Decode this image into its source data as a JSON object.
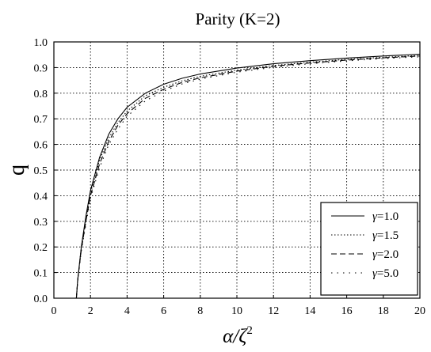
{
  "chart_data": {
    "type": "line",
    "title": "Parity (K=2)",
    "xlabel": "α/ζ",
    "xlabel_superscript": "2",
    "ylabel": "q",
    "xlim": [
      0,
      20
    ],
    "ylim": [
      0,
      1
    ],
    "xticks": [
      0,
      2,
      4,
      6,
      8,
      10,
      12,
      14,
      16,
      18,
      20
    ],
    "yticks": [
      "0.0",
      "0.1",
      "0.2",
      "0.3",
      "0.4",
      "0.5",
      "0.6",
      "0.7",
      "0.8",
      "0.9",
      "1.0"
    ],
    "grid": true,
    "legend_position": "bottom-right",
    "series": [
      {
        "name": "γ=1.0",
        "legend_symbol": "γ",
        "legend_value": "=1.0",
        "dash": "solid",
        "points": [
          [
            1.23,
            0
          ],
          [
            1.3,
            0.07
          ],
          [
            1.5,
            0.2
          ],
          [
            1.75,
            0.32
          ],
          [
            2.0,
            0.42
          ],
          [
            2.5,
            0.55
          ],
          [
            3.0,
            0.64
          ],
          [
            3.5,
            0.7
          ],
          [
            4.0,
            0.745
          ],
          [
            5.0,
            0.8
          ],
          [
            6.0,
            0.835
          ],
          [
            7.0,
            0.858
          ],
          [
            8.0,
            0.875
          ],
          [
            10.0,
            0.898
          ],
          [
            12.0,
            0.915
          ],
          [
            14.0,
            0.927
          ],
          [
            16.0,
            0.937
          ],
          [
            18.0,
            0.945
          ],
          [
            20.0,
            0.952
          ]
        ]
      },
      {
        "name": "γ=1.5",
        "legend_symbol": "γ",
        "legend_value": "=1.5",
        "dash": "dotted",
        "points": [
          [
            1.23,
            0
          ],
          [
            1.3,
            0.07
          ],
          [
            1.5,
            0.2
          ],
          [
            1.75,
            0.31
          ],
          [
            2.0,
            0.41
          ],
          [
            2.5,
            0.54
          ],
          [
            3.0,
            0.625
          ],
          [
            3.5,
            0.685
          ],
          [
            4.0,
            0.73
          ],
          [
            5.0,
            0.79
          ],
          [
            6.0,
            0.823
          ],
          [
            7.0,
            0.848
          ],
          [
            8.0,
            0.866
          ],
          [
            10.0,
            0.89
          ],
          [
            12.0,
            0.908
          ],
          [
            14.0,
            0.921
          ],
          [
            16.0,
            0.932
          ],
          [
            18.0,
            0.94
          ],
          [
            20.0,
            0.947
          ]
        ]
      },
      {
        "name": "γ=2.0",
        "legend_symbol": "γ",
        "legend_value": "=2.0",
        "dash": "dashed",
        "points": [
          [
            1.23,
            0
          ],
          [
            1.3,
            0.07
          ],
          [
            1.5,
            0.19
          ],
          [
            1.75,
            0.3
          ],
          [
            2.0,
            0.4
          ],
          [
            2.5,
            0.525
          ],
          [
            3.0,
            0.612
          ],
          [
            3.5,
            0.675
          ],
          [
            4.0,
            0.72
          ],
          [
            5.0,
            0.78
          ],
          [
            6.0,
            0.815
          ],
          [
            7.0,
            0.842
          ],
          [
            8.0,
            0.86
          ],
          [
            10.0,
            0.886
          ],
          [
            12.0,
            0.905
          ],
          [
            14.0,
            0.918
          ],
          [
            16.0,
            0.929
          ],
          [
            18.0,
            0.938
          ],
          [
            20.0,
            0.945
          ]
        ]
      },
      {
        "name": "γ=5.0",
        "legend_symbol": "γ",
        "legend_value": "=5.0",
        "dash": "sparse-dotted",
        "points": [
          [
            1.23,
            0
          ],
          [
            1.3,
            0.065
          ],
          [
            1.5,
            0.185
          ],
          [
            1.75,
            0.29
          ],
          [
            2.0,
            0.39
          ],
          [
            2.5,
            0.51
          ],
          [
            3.0,
            0.6
          ],
          [
            3.5,
            0.66
          ],
          [
            4.0,
            0.71
          ],
          [
            5.0,
            0.77
          ],
          [
            6.0,
            0.808
          ],
          [
            7.0,
            0.836
          ],
          [
            8.0,
            0.855
          ],
          [
            10.0,
            0.882
          ],
          [
            12.0,
            0.901
          ],
          [
            14.0,
            0.915
          ],
          [
            16.0,
            0.926
          ],
          [
            18.0,
            0.935
          ],
          [
            20.0,
            0.942
          ]
        ]
      }
    ]
  }
}
